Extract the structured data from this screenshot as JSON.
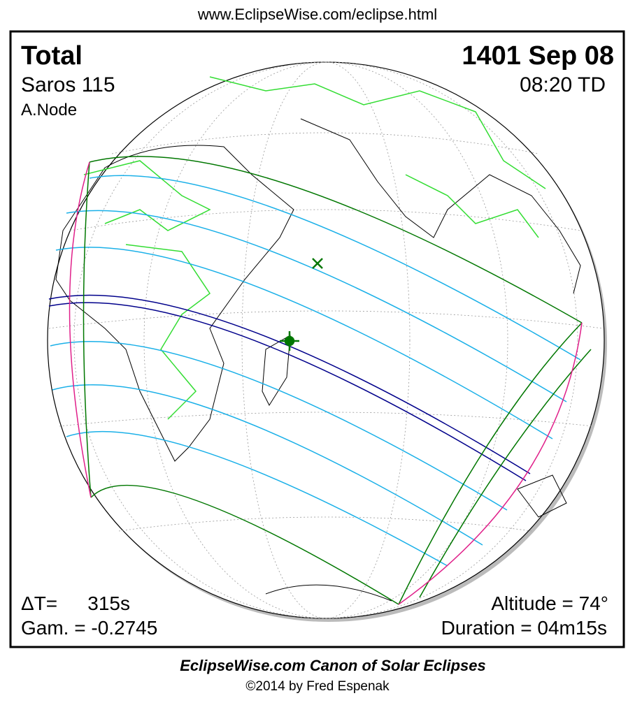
{
  "header": {
    "url": "www.EclipseWise.com/eclipse.html"
  },
  "map": {
    "eclipse_type": "Total",
    "date": "1401 Sep 08",
    "saros": "Saros 115",
    "time": "08:20 TD",
    "node": "A.Node",
    "delta_t_label": "ΔT=",
    "delta_t": "315s",
    "gamma": "Gam. = -0.2745",
    "altitude": "Altitude = 74°",
    "duration": "Duration = 04m15s"
  },
  "footer": {
    "title": "EclipseWise.com Canon of Solar Eclipses",
    "copyright": "©2014 by Fred Espenak"
  }
}
